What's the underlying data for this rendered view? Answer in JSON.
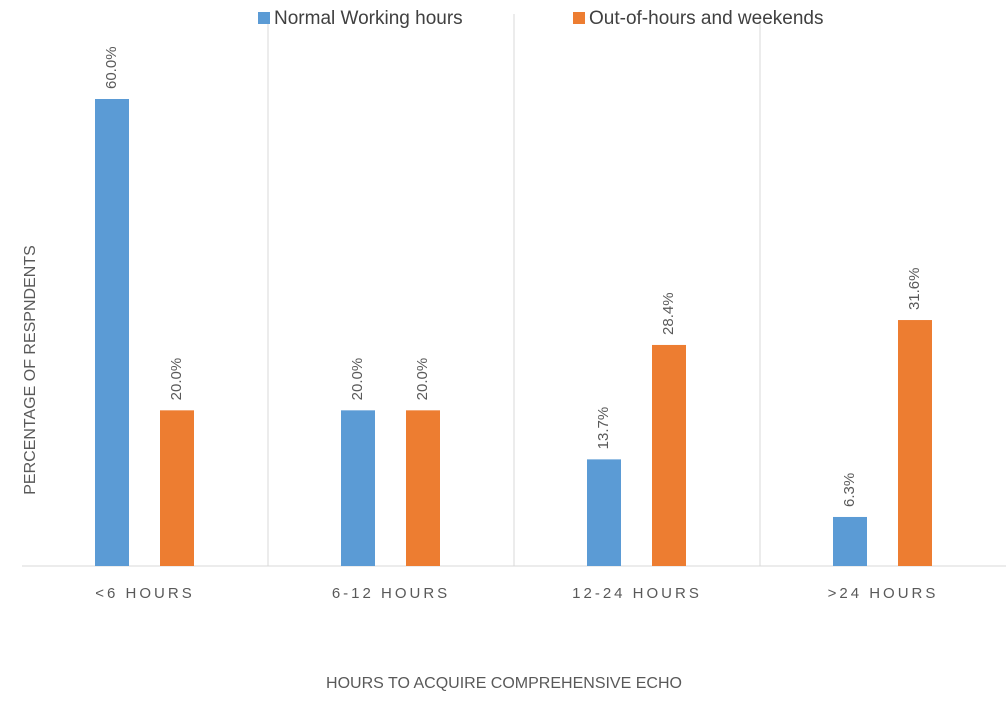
{
  "chart_data": {
    "type": "bar",
    "x_label": "HOURS TO ACQUIRE COMPREHENSIVE ECHO",
    "y_label": "PERCENTAGE OF RESPNDENTS",
    "categories": [
      "<6 HOURS",
      "6-12 HOURS",
      "12-24 HOURS",
      ">24 HOURS"
    ],
    "series": [
      {
        "name": "Normal Working hours",
        "color": "#5b9bd5",
        "values": [
          60.0,
          20.0,
          13.7,
          6.3
        ],
        "value_labels": [
          "60.0%",
          "20.0%",
          "13.7%",
          "6.3%"
        ]
      },
      {
        "name": "Out-of-hours and weekends",
        "color": "#ed7d31",
        "values": [
          20.0,
          20.0,
          28.4,
          31.6
        ],
        "value_labels": [
          "20.0%",
          "20.0%",
          "28.4%",
          "31.6%"
        ]
      }
    ],
    "legend": "top"
  }
}
